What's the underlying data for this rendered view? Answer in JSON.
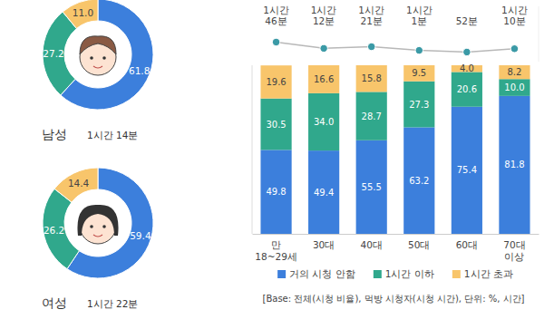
{
  "chart_data": [
    {
      "type": "donut",
      "title": "남성",
      "subtitle": "1시간 14분",
      "values": [
        61.8,
        27.2,
        11.0
      ],
      "value_labels": [
        "61.8",
        "27.2",
        "11.0"
      ],
      "colors": [
        "#3c7fdc",
        "#30a88c",
        "#f8c56b"
      ],
      "data_labels": true
    },
    {
      "type": "donut",
      "title": "여성",
      "subtitle": "1시간 22분",
      "values": [
        59.4,
        26.2,
        14.4
      ],
      "value_labels": [
        "59.4",
        "26.2",
        "14.4"
      ],
      "colors": [
        "#3c7fdc",
        "#30a88c",
        "#f8c56b"
      ],
      "data_labels": true
    },
    {
      "type": "bar",
      "stacked": true,
      "data_labels": true,
      "legend": "bottom",
      "tick_labels": "x",
      "categories": [
        "만 18~29세",
        "30대",
        "40대",
        "50대",
        "60대",
        "70대 이상"
      ],
      "series": [
        {
          "name": "거의 시청 안함",
          "color": "#3c7fdc",
          "values": [
            49.8,
            49.4,
            55.5,
            63.2,
            75.4,
            81.8
          ],
          "value_labels": [
            "49.8",
            "49.4",
            "55.5",
            "63.2",
            "75.4",
            "81.8"
          ]
        },
        {
          "name": "1시간 이하",
          "color": "#30a88c",
          "values": [
            30.5,
            34.0,
            28.7,
            27.3,
            20.6,
            10.0
          ],
          "value_labels": [
            "30.5",
            "34.0",
            "28.7",
            "27.3",
            "20.6",
            "10.0"
          ]
        },
        {
          "name": "1시간 초과",
          "color": "#f8c56b",
          "values": [
            19.6,
            16.6,
            15.8,
            9.5,
            4.0,
            8.2
          ],
          "value_labels": [
            "19.6",
            "16.6",
            "15.8",
            "9.5",
            "4.0",
            "8.2"
          ]
        },
        {
          "type": "line",
          "axis": "y2",
          "color": "#b8b8b8",
          "marker": "circle",
          "values": [
            106,
            72,
            81,
            61,
            52,
            70
          ],
          "value_labels": [
            "1시간 46분",
            "1시간 12분",
            "1시간 21분",
            "1시간 1분",
            "52분",
            "1시간 10분"
          ]
        }
      ],
      "ylim": [
        0,
        100
      ],
      "y2lim": [
        0,
        300
      ],
      "annotation": "[Base: 전체(시청 비율), 먹방 시청자(시청 시간), 단위: %, 시간]"
    }
  ]
}
